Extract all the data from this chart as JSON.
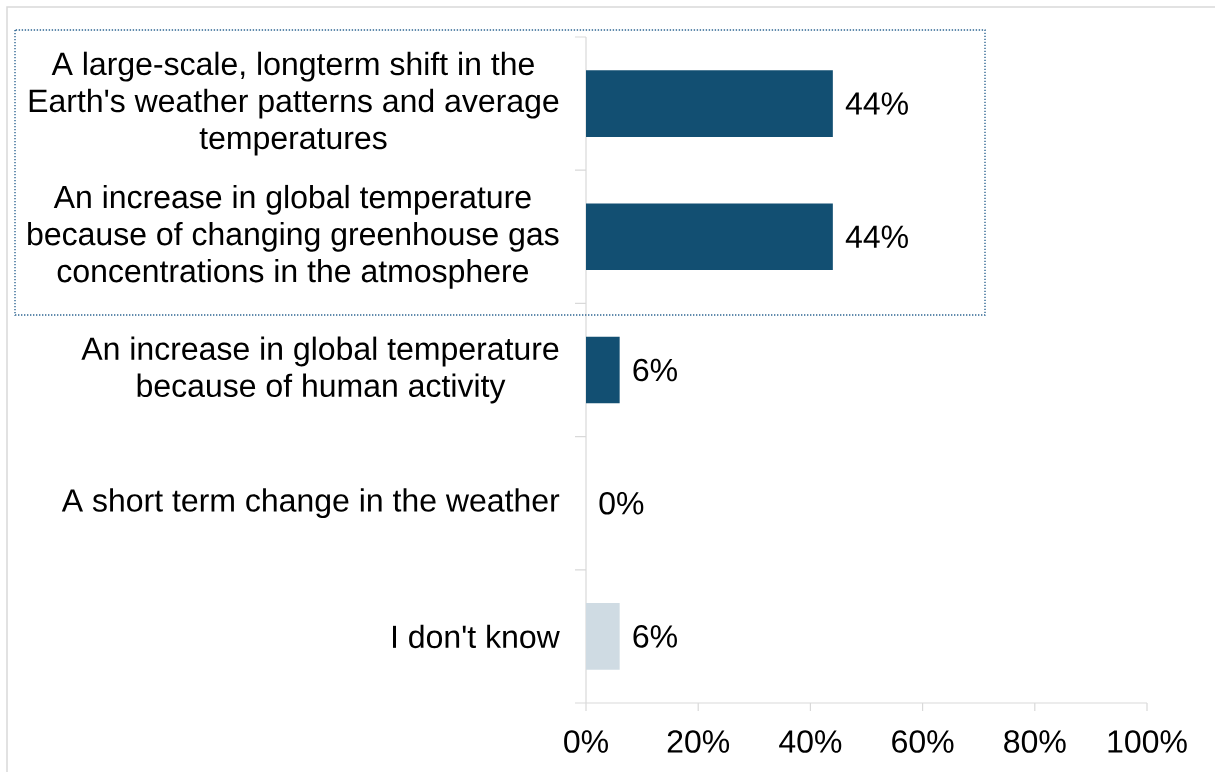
{
  "chart_data": {
    "type": "bar",
    "orientation": "horizontal",
    "categories": [
      "A large-scale, longterm shift in the Earth's weather patterns and average temperatures",
      "An increase in global temperature because of changing greenhouse gas concentrations in the atmosphere",
      "An increase in global temperature because of human activity",
      "A short term change in the weather",
      "I don't know"
    ],
    "values": [
      44,
      44,
      6,
      0,
      6
    ],
    "colors": [
      "#124f72",
      "#124f72",
      "#124f72",
      "#124f72",
      "#cfdbe3"
    ],
    "value_labels": [
      "44%",
      "44%",
      "6%",
      "0%",
      "6%"
    ],
    "xlim": [
      0,
      100
    ],
    "xticks": [
      {
        "value": 0,
        "label": "0%"
      },
      {
        "value": 20,
        "label": "20%"
      },
      {
        "value": 40,
        "label": "40%"
      },
      {
        "value": 60,
        "label": "60%"
      },
      {
        "value": 80,
        "label": "80%"
      },
      {
        "value": 100,
        "label": "100%"
      }
    ]
  }
}
